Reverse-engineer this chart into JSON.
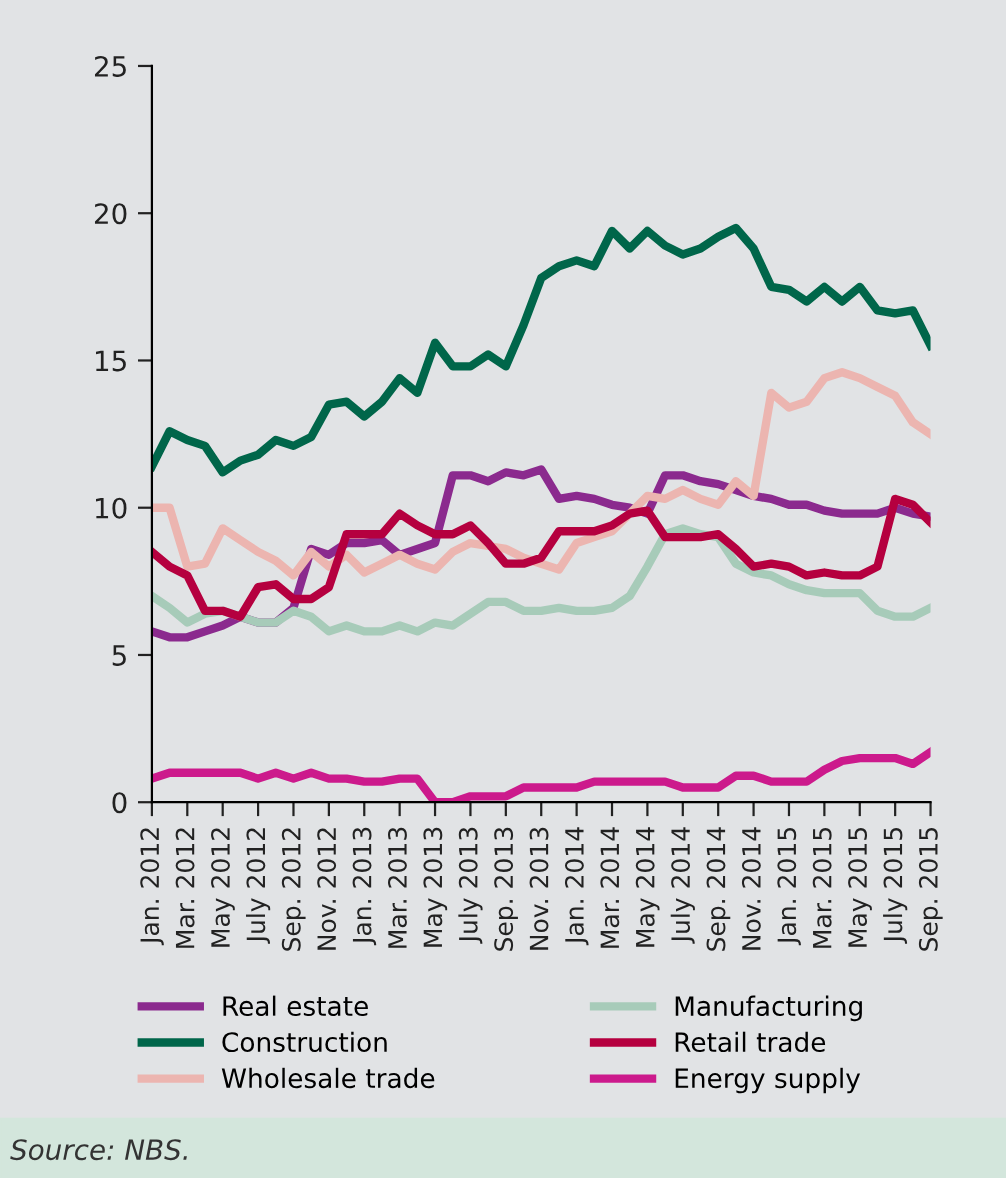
{
  "chart_data": {
    "type": "line",
    "x": [
      "2012-01",
      "2012-02",
      "2012-03",
      "2012-04",
      "2012-05",
      "2012-06",
      "2012-07",
      "2012-08",
      "2012-09",
      "2012-10",
      "2012-11",
      "2012-12",
      "2013-01",
      "2013-02",
      "2013-03",
      "2013-04",
      "2013-05",
      "2013-06",
      "2013-07",
      "2013-08",
      "2013-09",
      "2013-10",
      "2013-11",
      "2013-12",
      "2014-01",
      "2014-02",
      "2014-03",
      "2014-04",
      "2014-05",
      "2014-06",
      "2014-07",
      "2014-08",
      "2014-09",
      "2014-10",
      "2014-11",
      "2014-12",
      "2015-01",
      "2015-02",
      "2015-03",
      "2015-04",
      "2015-05",
      "2015-06",
      "2015-07",
      "2015-08",
      "2015-09"
    ],
    "series": [
      {
        "name": "Real estate",
        "color": "#8b2a8e",
        "values": [
          5.8,
          5.6,
          5.6,
          5.8,
          6.0,
          6.3,
          6.1,
          6.1,
          6.6,
          8.6,
          8.4,
          8.8,
          8.8,
          8.9,
          8.4,
          8.6,
          8.8,
          11.1,
          11.1,
          10.9,
          11.2,
          11.1,
          11.3,
          10.3,
          10.4,
          10.3,
          10.1,
          10.0,
          9.8,
          11.1,
          11.1,
          10.9,
          10.8,
          10.6,
          10.4,
          10.3,
          10.1,
          10.1,
          9.9,
          9.8,
          9.8,
          9.8,
          10.0,
          9.8,
          9.7
        ]
      },
      {
        "name": "Construction",
        "color": "#00664a",
        "values": [
          11.4,
          12.6,
          12.3,
          12.1,
          11.2,
          11.6,
          11.8,
          12.3,
          12.1,
          12.4,
          13.5,
          13.6,
          13.1,
          13.6,
          14.4,
          13.9,
          15.6,
          14.8,
          14.8,
          15.2,
          14.8,
          16.2,
          17.8,
          18.2,
          18.4,
          18.2,
          19.4,
          18.8,
          19.4,
          18.9,
          18.6,
          18.8,
          19.2,
          19.5,
          18.8,
          17.5,
          17.4,
          17.0,
          17.5,
          17.0,
          17.5,
          16.7,
          16.6,
          16.7,
          15.5
        ]
      },
      {
        "name": "Wholesale trade",
        "color": "#ecb5b0",
        "values": [
          10.0,
          10.0,
          8.0,
          8.1,
          9.3,
          8.9,
          8.5,
          8.2,
          7.7,
          8.5,
          8.0,
          8.4,
          7.8,
          8.1,
          8.4,
          8.1,
          7.9,
          8.5,
          8.8,
          8.7,
          8.6,
          8.3,
          8.1,
          7.9,
          8.8,
          9.0,
          9.2,
          9.8,
          10.4,
          10.3,
          10.6,
          10.3,
          10.1,
          10.9,
          10.4,
          13.9,
          13.4,
          13.6,
          14.4,
          14.6,
          14.4,
          14.1,
          13.8,
          12.9,
          12.5
        ]
      },
      {
        "name": "Manufacturing",
        "color": "#a7cbb9",
        "values": [
          7.0,
          6.6,
          6.1,
          6.4,
          6.5,
          6.3,
          6.1,
          6.1,
          6.5,
          6.3,
          5.8,
          6.0,
          5.8,
          5.8,
          6.0,
          5.8,
          6.1,
          6.0,
          6.4,
          6.8,
          6.8,
          6.5,
          6.5,
          6.6,
          6.5,
          6.5,
          6.6,
          7.0,
          8.0,
          9.1,
          9.3,
          9.1,
          9.0,
          8.1,
          7.8,
          7.7,
          7.4,
          7.2,
          7.1,
          7.1,
          7.1,
          6.5,
          6.3,
          6.3,
          6.6
        ]
      },
      {
        "name": "Retail trade",
        "color": "#b5003f",
        "values": [
          8.5,
          8.0,
          7.7,
          6.5,
          6.5,
          6.3,
          7.3,
          7.4,
          6.9,
          6.9,
          7.3,
          9.1,
          9.1,
          9.1,
          9.8,
          9.4,
          9.1,
          9.1,
          9.4,
          8.8,
          8.1,
          8.1,
          8.3,
          9.2,
          9.2,
          9.2,
          9.4,
          9.8,
          9.9,
          9.0,
          9.0,
          9.0,
          9.1,
          8.6,
          8.0,
          8.1,
          8.0,
          7.7,
          7.8,
          7.7,
          7.7,
          8.0,
          10.3,
          10.1,
          9.5
        ]
      },
      {
        "name": "Energy supply",
        "color": "#cc1a8c",
        "values": [
          0.8,
          1.0,
          1.0,
          1.0,
          1.0,
          1.0,
          0.8,
          1.0,
          0.8,
          1.0,
          0.8,
          0.8,
          0.7,
          0.7,
          0.8,
          0.8,
          0.0,
          0.0,
          0.2,
          0.2,
          0.2,
          0.5,
          0.5,
          0.5,
          0.5,
          0.7,
          0.7,
          0.7,
          0.7,
          0.7,
          0.5,
          0.5,
          0.5,
          0.9,
          0.9,
          0.7,
          0.7,
          0.7,
          1.1,
          1.4,
          1.5,
          1.5,
          1.5,
          1.3,
          1.7
        ]
      }
    ],
    "xlim": [
      "2012-01",
      "2015-09"
    ],
    "xticks": [
      {
        "value": "2012-01",
        "label": "Jan. 2012"
      },
      {
        "value": "2012-03",
        "label": "Mar. 2012"
      },
      {
        "value": "2012-05",
        "label": "May 2012"
      },
      {
        "value": "2012-07",
        "label": "July 2012"
      },
      {
        "value": "2012-09",
        "label": "Sep. 2012"
      },
      {
        "value": "2012-11",
        "label": "Nov. 2012"
      },
      {
        "value": "2013-01",
        "label": "Jan. 2013"
      },
      {
        "value": "2013-03",
        "label": "Mar. 2013"
      },
      {
        "value": "2013-05",
        "label": "May 2013"
      },
      {
        "value": "2013-07",
        "label": "July 2013"
      },
      {
        "value": "2013-09",
        "label": "Sep. 2013"
      },
      {
        "value": "2013-11",
        "label": "Nov. 2013"
      },
      {
        "value": "2014-01",
        "label": "Jan. 2014"
      },
      {
        "value": "2014-03",
        "label": "Mar. 2014"
      },
      {
        "value": "2014-05",
        "label": "May 2014"
      },
      {
        "value": "2014-07",
        "label": "July 2014"
      },
      {
        "value": "2014-09",
        "label": "Sep. 2014"
      },
      {
        "value": "2014-11",
        "label": "Nov. 2014"
      },
      {
        "value": "2015-01",
        "label": "Jan. 2015"
      },
      {
        "value": "2015-03",
        "label": "Mar. 2015"
      },
      {
        "value": "2015-05",
        "label": "May 2015"
      },
      {
        "value": "2015-07",
        "label": "July 2015"
      },
      {
        "value": "2015-09",
        "label": "Sep. 2015"
      }
    ],
    "ylim": [
      0,
      25
    ],
    "yticks": [
      0,
      5,
      10,
      15,
      20,
      25
    ],
    "grid": false,
    "legend": "bottom",
    "marker": "none",
    "line_style": "solid",
    "annotations": [
      "Source: NBS."
    ]
  }
}
